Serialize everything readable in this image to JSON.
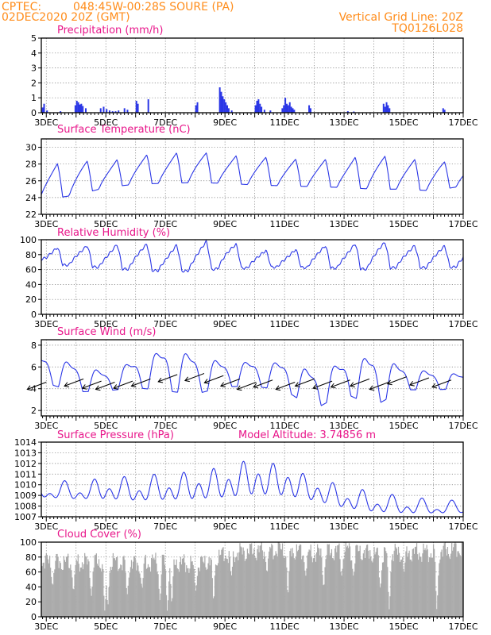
{
  "header": {
    "source": "CPTEC:",
    "location": "048:45W-00:28S  SOURE (PA)",
    "run": "02DEC2020 20Z (GMT)",
    "grid_note": "Vertical Grid Line: 20Z",
    "model_code": "TQ0126L028"
  },
  "colors": {
    "line": "#2a36e6",
    "cloud": "#aaaaaa",
    "title": "#e8168a",
    "header": "#ff8c1a"
  },
  "chart_data": [
    {
      "type": "bar",
      "title": "Precipitation (mm/h)",
      "date_ticks": [
        "3DEC",
        "5DEC",
        "7DEC",
        "9DEC",
        "11DEC",
        "13DEC",
        "15DEC",
        "17DEC"
      ],
      "xlim_days": [
        2.833,
        17.0
      ],
      "ylim": [
        0,
        5
      ],
      "yticks": [
        0,
        1,
        2,
        3,
        4,
        5
      ],
      "grid": true,
      "events": [
        [
          2.85,
          0.35
        ],
        [
          2.9,
          0.6
        ],
        [
          3.0,
          0.15
        ],
        [
          3.45,
          0.1
        ],
        [
          3.95,
          0.5
        ],
        [
          4.0,
          0.8
        ],
        [
          4.05,
          0.7
        ],
        [
          4.1,
          0.55
        ],
        [
          4.15,
          0.6
        ],
        [
          4.2,
          0.45
        ],
        [
          4.3,
          0.3
        ],
        [
          4.8,
          0.3
        ],
        [
          4.9,
          0.4
        ],
        [
          5.0,
          0.25
        ],
        [
          5.1,
          0.15
        ],
        [
          5.2,
          0.1
        ],
        [
          5.3,
          0.1
        ],
        [
          5.4,
          0.15
        ],
        [
          5.6,
          0.3
        ],
        [
          5.7,
          0.2
        ],
        [
          6.0,
          0.8
        ],
        [
          6.05,
          0.6
        ],
        [
          6.4,
          0.9
        ],
        [
          8.0,
          0.5
        ],
        [
          8.05,
          0.7
        ],
        [
          8.8,
          1.7
        ],
        [
          8.85,
          1.4
        ],
        [
          8.9,
          1.1
        ],
        [
          8.95,
          0.9
        ],
        [
          9.0,
          0.7
        ],
        [
          9.05,
          0.5
        ],
        [
          9.1,
          0.3
        ],
        [
          9.2,
          0.15
        ],
        [
          10.0,
          0.5
        ],
        [
          10.05,
          0.8
        ],
        [
          10.1,
          0.9
        ],
        [
          10.15,
          0.6
        ],
        [
          10.2,
          0.4
        ],
        [
          10.3,
          0.2
        ],
        [
          10.5,
          0.15
        ],
        [
          10.9,
          0.3
        ],
        [
          10.95,
          0.5
        ],
        [
          11.0,
          1.0
        ],
        [
          11.05,
          0.6
        ],
        [
          11.1,
          0.5
        ],
        [
          11.15,
          0.7
        ],
        [
          11.2,
          0.4
        ],
        [
          11.25,
          0.3
        ],
        [
          11.3,
          0.2
        ],
        [
          11.8,
          0.5
        ],
        [
          11.85,
          0.3
        ],
        [
          13.1,
          0.1
        ],
        [
          13.3,
          0.08
        ],
        [
          14.3,
          0.6
        ],
        [
          14.35,
          0.4
        ],
        [
          14.4,
          0.7
        ],
        [
          14.45,
          0.5
        ],
        [
          14.5,
          0.3
        ],
        [
          16.3,
          0.3
        ],
        [
          16.35,
          0.2
        ]
      ]
    },
    {
      "type": "line",
      "title": "Surface Temperature (nC)",
      "date_ticks": [
        "3DEC",
        "5DEC",
        "7DEC",
        "9DEC",
        "11DEC",
        "13DEC",
        "15DEC",
        "17DEC"
      ],
      "xlim_days": [
        2.833,
        17.0
      ],
      "ylim": [
        22,
        31
      ],
      "yticks": [
        22,
        24,
        26,
        28,
        30
      ],
      "grid": true,
      "base": [
        23.0,
        23.8,
        24.3,
        25.2,
        25.6,
        25.7,
        25.8,
        25.7,
        25.5,
        25.4,
        25.3,
        25.2,
        25.0,
        25.0,
        24.8,
        25.4
      ],
      "peak": [
        27.8,
        27.8,
        28.4,
        28.2,
        29.0,
        29.2,
        29.5,
        29.0,
        28.9,
        28.6,
        28.5,
        28.6,
        29.1,
        28.6,
        28.4,
        28.0
      ]
    },
    {
      "type": "line",
      "title": "Relative Humidity (%)",
      "date_ticks": [
        "3DEC",
        "5DEC",
        "7DEC",
        "9DEC",
        "11DEC",
        "13DEC",
        "15DEC",
        "17DEC"
      ],
      "xlim_days": [
        2.833,
        17.0
      ],
      "ylim": [
        0,
        100
      ],
      "yticks": [
        0,
        20,
        40,
        60,
        80,
        100
      ],
      "grid": true,
      "base": [
        94,
        66,
        66,
        62,
        60,
        58,
        58,
        62,
        62,
        64,
        62,
        62,
        60,
        64,
        62,
        64
      ],
      "peak": [
        100,
        88,
        92,
        92,
        96,
        90,
        97,
        98,
        86,
        84,
        92,
        92,
        99,
        92,
        92,
        90
      ]
    },
    {
      "type": "line",
      "title": "Surface Wind (m/s)",
      "date_ticks": [
        "3DEC",
        "5DEC",
        "7DEC",
        "9DEC",
        "11DEC",
        "13DEC",
        "15DEC",
        "17DEC"
      ],
      "xlim_days": [
        2.833,
        17.0
      ],
      "ylim": [
        1.5,
        8.5
      ],
      "yticks": [
        2,
        4,
        6,
        8
      ],
      "grid": true,
      "low": [
        4.3,
        4.5,
        3.7,
        3.8,
        4.1,
        3.8,
        3.5,
        4.2,
        4.2,
        3.9,
        2.1,
        3.6,
        2.4,
        3.9,
        3.9,
        4.0
      ],
      "high": [
        7.3,
        7.1,
        6.4,
        5.6,
        6.7,
        7.8,
        7.3,
        6.5,
        6.6,
        6.5,
        5.8,
        6.5,
        7.3,
        6.1,
        5.6,
        5.4
      ],
      "vectors": [
        [
          3.0,
          4.6
        ],
        [
          4.25,
          4.9
        ],
        [
          4.85,
          4.7
        ],
        [
          5.3,
          4.6
        ],
        [
          5.9,
          4.7
        ],
        [
          6.5,
          4.9
        ],
        [
          7.4,
          5.3
        ],
        [
          8.3,
          5.4
        ],
        [
          8.95,
          5.2
        ],
        [
          9.5,
          4.9
        ],
        [
          10.05,
          4.6
        ],
        [
          10.6,
          4.8
        ],
        [
          11.35,
          4.6
        ],
        [
          12.0,
          4.9
        ],
        [
          12.6,
          4.7
        ],
        [
          13.2,
          4.8
        ],
        [
          13.85,
          4.9
        ],
        [
          14.5,
          4.6
        ],
        [
          15.1,
          5.1
        ],
        [
          15.85,
          5.0
        ],
        [
          16.6,
          4.8
        ]
      ]
    },
    {
      "type": "line",
      "title": "Surface Pressure (hPa)",
      "annotation": "Model Altitude: 3.74856 m",
      "date_ticks": [
        "3DEC",
        "5DEC",
        "7DEC",
        "9DEC",
        "11DEC",
        "13DEC",
        "15DEC",
        "17DEC"
      ],
      "xlim_days": [
        2.833,
        17.0
      ],
      "ylim": [
        1007,
        1014
      ],
      "yticks": [
        1007,
        1008,
        1009,
        1010,
        1011,
        1012,
        1013,
        1014
      ],
      "grid": true,
      "max1": [
        1011.2,
        1011.0,
        1010.4,
        1011.0,
        1011.2,
        1011.8,
        1011.8,
        1012.4,
        1013.4,
        1012.3,
        1011.0,
        1010.3,
        1009.7,
        1009.2,
        1008.7,
        1008.5
      ],
      "max2": [
        1010.2,
        1009.5,
        1009.8,
        1010.5,
        1010.2,
        1010.3,
        1011.0,
        1011.5,
        1012.2,
        1012.0,
        1010.8,
        1009.5,
        1008.8,
        1008.5,
        1008.2,
        1008.1
      ],
      "min1": [
        1008.5,
        1008.2,
        1008.0,
        1007.8,
        1007.4,
        1007.6,
        1007.6,
        1007.5,
        1007.6,
        1007.9,
        1007.6,
        1007.0,
        1006.8,
        1006.8,
        1006.9,
        1007.0
      ],
      "min2": [
        1009.3,
        1009.0,
        1008.8,
        1008.6,
        1008.7,
        1008.5,
        1008.4,
        1008.6,
        1008.8,
        1008.5,
        1008.2,
        1007.8,
        1007.4,
        1007.3,
        1007.4,
        1007.5
      ]
    },
    {
      "type": "area",
      "title": "Cloud Cover (%)",
      "date_ticks": [
        "3DEC",
        "5DEC",
        "7DEC",
        "9DEC",
        "11DEC",
        "13DEC",
        "15DEC",
        "17DEC"
      ],
      "xlim_days": [
        2.833,
        17.0
      ],
      "ylim": [
        0,
        100
      ],
      "yticks": [
        0,
        20,
        40,
        60,
        80,
        100
      ],
      "grid": true,
      "daily_mean": [
        80,
        74,
        72,
        74,
        70,
        76,
        68,
        84,
        88,
        90,
        84,
        90,
        84,
        86,
        86,
        92
      ],
      "dips": [
        [
          3.2,
          42
        ],
        [
          3.9,
          35
        ],
        [
          4.5,
          28
        ],
        [
          4.95,
          8
        ],
        [
          5.05,
          15
        ],
        [
          5.7,
          30
        ],
        [
          6.2,
          38
        ],
        [
          6.8,
          22
        ],
        [
          7.05,
          8
        ],
        [
          7.2,
          18
        ],
        [
          8.0,
          35
        ],
        [
          8.6,
          22
        ],
        [
          9.2,
          55
        ],
        [
          10.4,
          60
        ],
        [
          11.1,
          30
        ],
        [
          11.7,
          55
        ],
        [
          12.3,
          40
        ],
        [
          12.9,
          55
        ],
        [
          13.3,
          55
        ],
        [
          14.2,
          38
        ],
        [
          14.5,
          10
        ],
        [
          15.0,
          60
        ],
        [
          16.1,
          10
        ]
      ]
    }
  ]
}
